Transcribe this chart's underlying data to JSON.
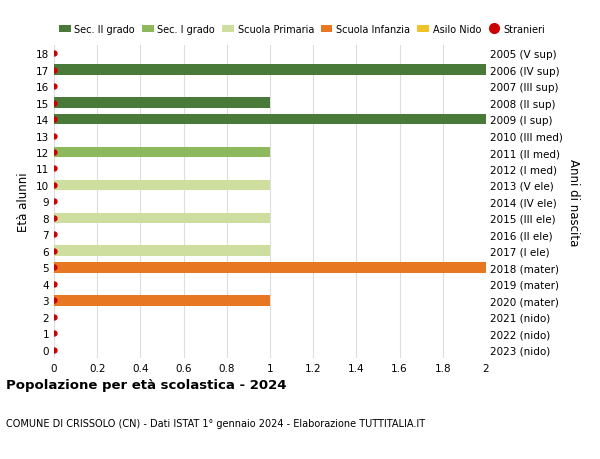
{
  "ages": [
    0,
    1,
    2,
    3,
    4,
    5,
    6,
    7,
    8,
    9,
    10,
    11,
    12,
    13,
    14,
    15,
    16,
    17,
    18
  ],
  "right_labels": [
    "2023 (nido)",
    "2022 (nido)",
    "2021 (nido)",
    "2020 (mater)",
    "2019 (mater)",
    "2018 (mater)",
    "2017 (I ele)",
    "2016 (II ele)",
    "2015 (III ele)",
    "2014 (IV ele)",
    "2013 (V ele)",
    "2012 (I med)",
    "2011 (II med)",
    "2010 (III med)",
    "2009 (I sup)",
    "2008 (II sup)",
    "2007 (III sup)",
    "2006 (IV sup)",
    "2005 (V sup)"
  ],
  "bar_values": [
    0,
    0,
    0,
    1,
    0,
    2,
    1,
    0,
    1,
    0,
    1,
    0,
    1,
    0,
    2,
    1,
    0,
    2,
    0
  ],
  "bar_colors": [
    "#f0c429",
    "#f0c429",
    "#f0c429",
    "#e87722",
    "#e87722",
    "#e87722",
    "#cede9e",
    "#cede9e",
    "#cede9e",
    "#cede9e",
    "#cede9e",
    "#8db85e",
    "#8db85e",
    "#8db85e",
    "#4a7a3a",
    "#4a7a3a",
    "#4a7a3a",
    "#4a7a3a",
    "#4a7a3a"
  ],
  "stranieri_dots": [
    0,
    1,
    2,
    3,
    4,
    5,
    6,
    7,
    8,
    9,
    10,
    11,
    12,
    13,
    14,
    15,
    16,
    17,
    18
  ],
  "xlim": [
    0,
    2.0
  ],
  "xticks": [
    0,
    0.2,
    0.4,
    0.6,
    0.8,
    1.0,
    1.2,
    1.4,
    1.6,
    1.8,
    2.0
  ],
  "left_ylabel": "Età alunni",
  "right_ylabel": "Anni di nascita",
  "title_bold": "Popolazione per età scolastica - 2024",
  "subtitle": "COMUNE DI CRISSOLO (CN) - Dati ISTAT 1° gennaio 2024 - Elaborazione TUTTITALIA.IT",
  "legend_labels": [
    "Sec. II grado",
    "Sec. I grado",
    "Scuola Primaria",
    "Scuola Infanzia",
    "Asilo Nido",
    "Stranieri"
  ],
  "legend_colors": [
    "#4a7a3a",
    "#8db85e",
    "#cede9e",
    "#e87722",
    "#f0c429",
    "#cc0000"
  ],
  "bar_height": 0.65,
  "bg_color": "#ffffff",
  "grid_color": "#dddddd",
  "dot_color": "#cc0000"
}
